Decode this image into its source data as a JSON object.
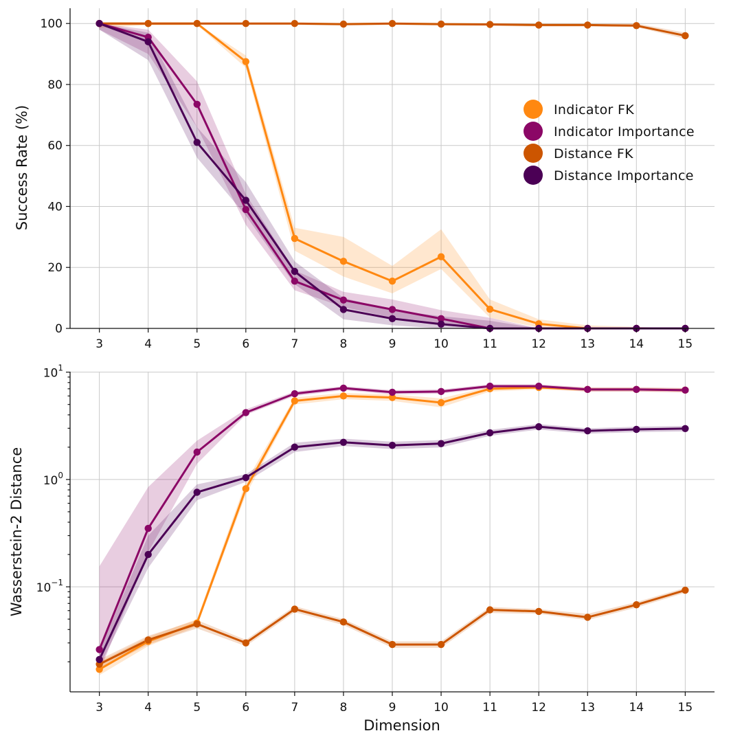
{
  "colors": {
    "Indicator FK": "#FF8811",
    "Indicator Importance": "#8B0766",
    "Distance FK": "#CC5500",
    "Distance Importance": "#4B0055"
  },
  "chart_data": [
    {
      "type": "line",
      "ylabel": "Success Rate (%)",
      "xlabel": "",
      "x": [
        3,
        4,
        5,
        6,
        7,
        8,
        9,
        10,
        11,
        12,
        13,
        14,
        15
      ],
      "xticks": [
        "3",
        "4",
        "5",
        "6",
        "7",
        "8",
        "9",
        "10",
        "11",
        "12",
        "13",
        "14",
        "15"
      ],
      "ylim": [
        0,
        105
      ],
      "yticks": [
        0,
        20,
        40,
        60,
        80,
        100
      ],
      "yscale": "linear",
      "grid": true,
      "legend": {
        "position": "center-right",
        "entries": [
          "Indicator FK",
          "Indicator Importance",
          "Distance FK",
          "Distance Importance"
        ]
      },
      "series": [
        {
          "name": "Indicator FK",
          "values": [
            100,
            100,
            100,
            87.5,
            29.5,
            22,
            15.5,
            23.5,
            6.3,
            1.5,
            0,
            0,
            0
          ],
          "lower": [
            98.5,
            99.5,
            99.5,
            85.5,
            25.5,
            17,
            11.5,
            19.5,
            3.5,
            0.3,
            0,
            0,
            0
          ],
          "upper": [
            100,
            100,
            100,
            89.5,
            33,
            30,
            20.5,
            32.5,
            9.5,
            3,
            1,
            0.5,
            0
          ]
        },
        {
          "name": "Indicator Importance",
          "values": [
            100,
            95.5,
            73.5,
            39,
            15.5,
            9.3,
            6.2,
            3.2,
            0,
            0,
            0,
            0,
            0
          ],
          "lower": [
            98,
            90,
            66,
            34,
            12.5,
            7,
            3.5,
            1,
            0,
            0,
            0,
            0,
            0
          ],
          "upper": [
            100,
            98,
            81,
            44,
            19,
            12,
            9.5,
            6,
            3.5,
            0,
            0,
            0,
            0
          ]
        },
        {
          "name": "Distance FK",
          "values": [
            100,
            100,
            100,
            100,
            100,
            99.8,
            100,
            99.8,
            99.7,
            99.5,
            99.5,
            99.3,
            96
          ],
          "lower": [
            99.5,
            99.5,
            99.5,
            99.5,
            99.5,
            99.3,
            99.5,
            99.3,
            99.2,
            99,
            99,
            98.8,
            95
          ],
          "upper": [
            100,
            100,
            100,
            100,
            100,
            100,
            100,
            100,
            100,
            100,
            100,
            100,
            97
          ]
        },
        {
          "name": "Distance Importance",
          "values": [
            100,
            94,
            61,
            42,
            18.7,
            6.2,
            3.2,
            1.4,
            0,
            0,
            0,
            0,
            0
          ],
          "lower": [
            98,
            88,
            56,
            37,
            14.5,
            3,
            1,
            0,
            0,
            0,
            0,
            0,
            0
          ],
          "upper": [
            100,
            97,
            66,
            48,
            22,
            10,
            6,
            4,
            2.5,
            0,
            0,
            0,
            0
          ]
        }
      ]
    },
    {
      "type": "line",
      "ylabel": "Wasserstein-2 Distance",
      "xlabel": "Dimension",
      "x": [
        3,
        4,
        5,
        6,
        7,
        8,
        9,
        10,
        11,
        12,
        13,
        14,
        15
      ],
      "xticks": [
        "3",
        "4",
        "5",
        "6",
        "7",
        "8",
        "9",
        "10",
        "11",
        "12",
        "13",
        "14",
        "15"
      ],
      "yscale": "log",
      "ylim": [
        0.0105,
        10.1
      ],
      "yticks": [
        {
          "value": 0.1,
          "base": "10",
          "exp": "−1"
        },
        {
          "value": 1,
          "base": "10",
          "exp": "0"
        },
        {
          "value": 10,
          "base": "10",
          "exp": "1"
        }
      ],
      "grid": true,
      "series": [
        {
          "name": "Indicator FK",
          "values": [
            0.017,
            0.031,
            0.046,
            0.82,
            5.4,
            6.0,
            5.8,
            5.2,
            7.0,
            7.2,
            6.9,
            6.9,
            6.8
          ],
          "lower": [
            0.015,
            0.028,
            0.043,
            0.72,
            5.0,
            5.6,
            5.4,
            4.7,
            6.6,
            6.9,
            6.6,
            6.6,
            6.5
          ],
          "upper": [
            0.02,
            0.034,
            0.05,
            0.95,
            5.8,
            6.4,
            6.2,
            5.7,
            7.3,
            7.5,
            7.2,
            7.2,
            7.1
          ]
        },
        {
          "name": "Indicator Importance",
          "values": [
            0.026,
            0.35,
            1.8,
            4.2,
            6.3,
            7.1,
            6.5,
            6.6,
            7.4,
            7.4,
            6.9,
            6.9,
            6.8
          ],
          "lower": [
            0.016,
            0.21,
            1.4,
            4.0,
            6.0,
            6.8,
            6.2,
            6.3,
            7.1,
            7.1,
            6.6,
            6.6,
            6.5
          ],
          "upper": [
            0.155,
            0.85,
            2.3,
            4.5,
            6.6,
            7.4,
            6.8,
            6.9,
            7.7,
            7.7,
            7.2,
            7.2,
            7.1
          ]
        },
        {
          "name": "Distance FK",
          "values": [
            0.019,
            0.032,
            0.045,
            0.03,
            0.062,
            0.047,
            0.029,
            0.029,
            0.061,
            0.059,
            0.052,
            0.068,
            0.093
          ],
          "lower": [
            0.017,
            0.029,
            0.041,
            0.028,
            0.058,
            0.044,
            0.027,
            0.027,
            0.057,
            0.056,
            0.049,
            0.064,
            0.088
          ],
          "upper": [
            0.021,
            0.035,
            0.049,
            0.032,
            0.066,
            0.05,
            0.031,
            0.031,
            0.065,
            0.062,
            0.056,
            0.072,
            0.098
          ]
        },
        {
          "name": "Distance Importance",
          "values": [
            0.021,
            0.2,
            0.76,
            1.04,
            2.0,
            2.22,
            2.08,
            2.16,
            2.72,
            3.1,
            2.84,
            2.93,
            2.98
          ],
          "lower": [
            0.018,
            0.15,
            0.64,
            0.95,
            1.8,
            2.05,
            1.92,
            1.99,
            2.55,
            2.92,
            2.67,
            2.76,
            2.8
          ],
          "upper": [
            0.025,
            0.3,
            0.9,
            1.12,
            2.2,
            2.4,
            2.25,
            2.33,
            2.9,
            3.28,
            3.0,
            3.1,
            3.16
          ]
        }
      ]
    }
  ]
}
